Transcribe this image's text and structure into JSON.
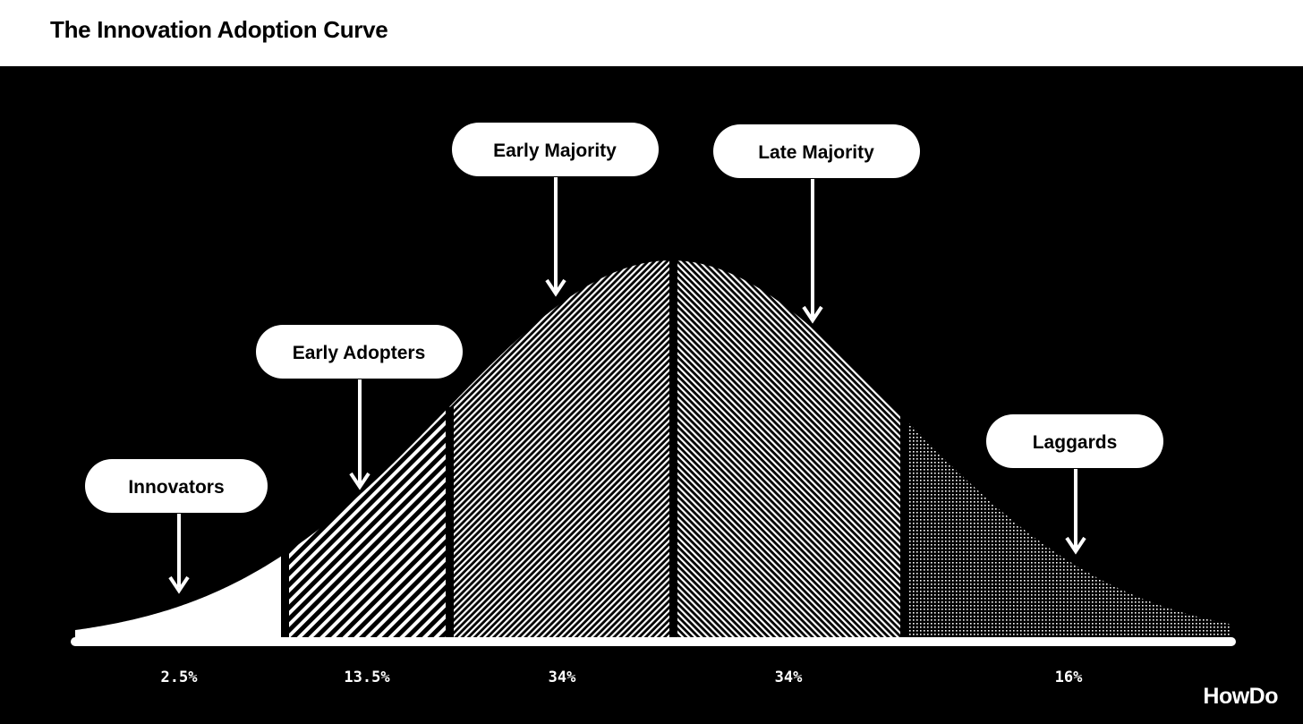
{
  "header": {
    "title": "The Innovation Adoption Curve"
  },
  "segments": [
    {
      "label": "Innovators",
      "percent": "2.5%",
      "pattern": "solid"
    },
    {
      "label": "Early Adopters",
      "percent": "13.5%",
      "pattern": "wide-diagonal"
    },
    {
      "label": "Early Majority",
      "percent": "34%",
      "pattern": "fine-diagonal"
    },
    {
      "label": "Late Majority",
      "percent": "34%",
      "pattern": "fine-anti-diagonal"
    },
    {
      "label": "Laggards",
      "percent": "16%",
      "pattern": "dots"
    }
  ],
  "colors": {
    "background": "#000000",
    "foreground": "#ffffff",
    "header_bg": "#ffffff"
  },
  "logo": {
    "text": "HowDo"
  }
}
